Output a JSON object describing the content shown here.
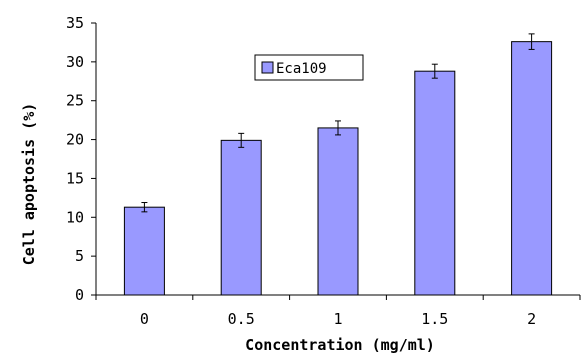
{
  "chart_data": {
    "type": "bar",
    "categories": [
      "0",
      "0.5",
      "1",
      "1.5",
      "2"
    ],
    "series": [
      {
        "name": "Eca109",
        "values": [
          11.3,
          19.9,
          21.5,
          28.8,
          32.6
        ],
        "errors": [
          0.6,
          0.9,
          0.9,
          0.9,
          1.0
        ]
      }
    ],
    "title": "",
    "xlabel": "Concentration (mg/ml)",
    "ylabel": "Cell apoptosis (%)",
    "ylim": [
      0,
      35
    ],
    "yticks": [
      "0",
      "5",
      "10",
      "15",
      "20",
      "25",
      "30",
      "35"
    ],
    "grid": false,
    "legend_position": "top-center",
    "colors": {
      "bar_fill": "#9999ff",
      "bar_stroke": "#000000",
      "axis": "#000000"
    }
  }
}
